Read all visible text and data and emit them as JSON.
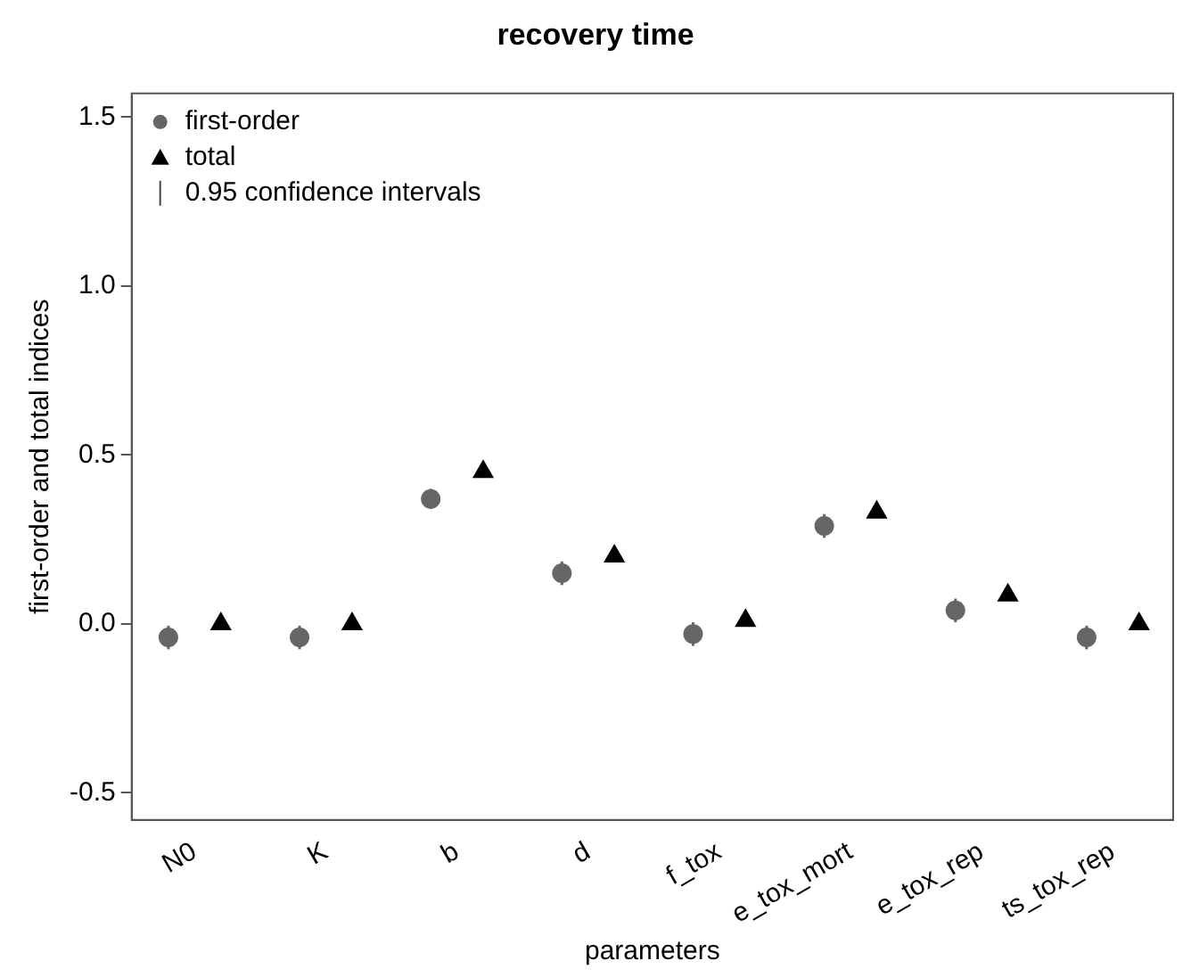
{
  "chart_data": {
    "type": "scatter",
    "title": "recovery time",
    "xlabel": "parameters",
    "ylabel": "first-order and total indices",
    "categories": [
      "N0",
      "K",
      "b",
      "d",
      "f_tox",
      "e_tox_mort",
      "e_tox_rep",
      "ts_tox_rep"
    ],
    "series": [
      {
        "name": "first-order",
        "color": "#666666",
        "marker": "circle",
        "values": [
          -0.04,
          -0.04,
          0.37,
          0.15,
          -0.03,
          0.29,
          0.04,
          -0.04
        ],
        "errors": [
          0.035,
          0.035,
          0.03,
          0.035,
          0.035,
          0.035,
          0.035,
          0.035
        ]
      },
      {
        "name": "total",
        "color": "#000000",
        "marker": "triangle",
        "values": [
          0.0,
          0.0,
          0.45,
          0.2,
          0.01,
          0.33,
          0.085,
          0.0
        ]
      }
    ],
    "annotations": [
      "0.95 confidence intervals"
    ],
    "ylim": [
      -0.58,
      1.57
    ],
    "yticks": [
      {
        "value": -0.5,
        "label": "-0.5"
      },
      {
        "value": 0,
        "label": "0.0"
      },
      {
        "value": 0.5,
        "label": "0.5"
      },
      {
        "value": 1,
        "label": "1.0"
      },
      {
        "value": 1.5,
        "label": "1.5"
      }
    ],
    "grid": false,
    "legend": "top left"
  }
}
